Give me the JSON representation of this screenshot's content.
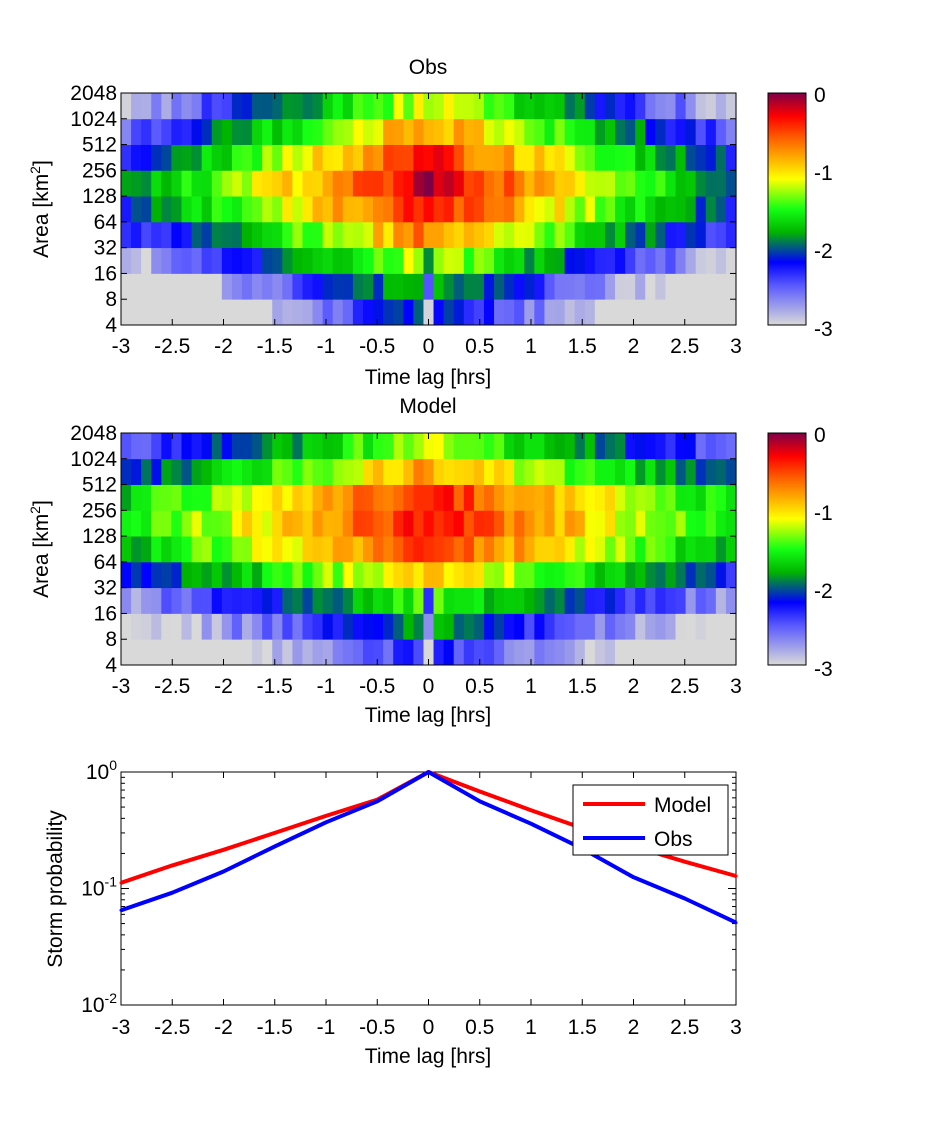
{
  "chart_data": [
    {
      "type": "heatmap",
      "title": "Obs",
      "xlabel": "Time lag [hrs]",
      "ylabel": "Area [km",
      "ylabel_sup": "2",
      "ylabel_end": "]",
      "xlim": [
        -3,
        3
      ],
      "x_ticks": [
        "-3",
        "-2.5",
        "-2",
        "-1.5",
        "-1",
        "-0.5",
        "0",
        "0.5",
        "1",
        "1.5",
        "2",
        "2.5",
        "3"
      ],
      "y_ticks": [
        "2048",
        "1024",
        "512",
        "256",
        "128",
        "64",
        "32",
        "16",
        "8",
        "4"
      ],
      "y_bins": [
        4,
        8,
        16,
        32,
        64,
        128,
        256,
        512,
        1024
      ],
      "x_bins": 61,
      "color_scale": "log10",
      "clim": [
        -3,
        0
      ],
      "colorbar_ticks": [
        "0",
        "-1",
        "-2",
        "-3"
      ],
      "value_model": {
        "peak_log10": -0.1,
        "peak_x": 0,
        "peak_area": 96,
        "row_offsets_log10": [
          -1.9,
          -1.55,
          -1.05,
          -0.55,
          -0.2,
          -0.05,
          -0.25,
          -0.6,
          -1.0
        ],
        "x_decay_per_hr": 0.62,
        "center_gap_rows": [
          0,
          1,
          2
        ]
      }
    },
    {
      "type": "heatmap",
      "title": "Model",
      "xlabel": "Time lag [hrs]",
      "ylabel": "Area [km",
      "ylabel_sup": "2",
      "ylabel_end": "]",
      "xlim": [
        -3,
        3
      ],
      "x_ticks": [
        "-3",
        "-2.5",
        "-2",
        "-1.5",
        "-1",
        "-0.5",
        "0",
        "0.5",
        "1",
        "1.5",
        "2",
        "2.5",
        "3"
      ],
      "y_ticks": [
        "2048",
        "1024",
        "512",
        "256",
        "128",
        "64",
        "32",
        "16",
        "8",
        "4"
      ],
      "y_bins": [
        4,
        8,
        16,
        32,
        64,
        128,
        256,
        512,
        1024
      ],
      "x_bins": 61,
      "color_scale": "log10",
      "clim": [
        -3,
        0
      ],
      "colorbar_ticks": [
        "0",
        "-1",
        "-2",
        "-3"
      ],
      "value_model": {
        "peak_log10": -0.25,
        "peak_x": 0,
        "peak_area": 128,
        "row_offsets_log10": [
          -2.0,
          -1.6,
          -1.2,
          -0.65,
          -0.2,
          -0.05,
          -0.1,
          -0.55,
          -0.95
        ],
        "x_decay_per_hr": 0.45,
        "center_gap_rows": [
          0,
          1,
          2
        ]
      }
    },
    {
      "type": "line",
      "xlabel": "Time lag [hrs]",
      "ylabel": "Storm probability",
      "xlim": [
        -3,
        3
      ],
      "ylim": [
        0.01,
        1
      ],
      "y_scale": "log",
      "x_ticks": [
        "-3",
        "-2.5",
        "-2",
        "-1.5",
        "-1",
        "-0.5",
        "0",
        "0.5",
        "1",
        "1.5",
        "2",
        "2.5",
        "3"
      ],
      "y_tick_values": [
        1,
        0.1,
        0.01
      ],
      "y_tick_base": "10",
      "y_tick_exponents": [
        "0",
        "-1",
        "-2"
      ],
      "legend_position": "top-right",
      "x": [
        -3,
        -2.5,
        -2,
        -1.5,
        -1,
        -0.5,
        0,
        0.5,
        1,
        1.5,
        2,
        2.5,
        3
      ],
      "series": [
        {
          "name": "Model",
          "color": "#ff0000",
          "values": [
            0.112,
            0.158,
            0.215,
            0.3,
            0.42,
            0.58,
            1.0,
            0.68,
            0.47,
            0.33,
            0.23,
            0.17,
            0.128
          ]
        },
        {
          "name": "Obs",
          "color": "#0000ff",
          "values": [
            0.065,
            0.092,
            0.14,
            0.23,
            0.37,
            0.56,
            1.0,
            0.56,
            0.36,
            0.22,
            0.125,
            0.082,
            0.051
          ]
        }
      ]
    }
  ]
}
